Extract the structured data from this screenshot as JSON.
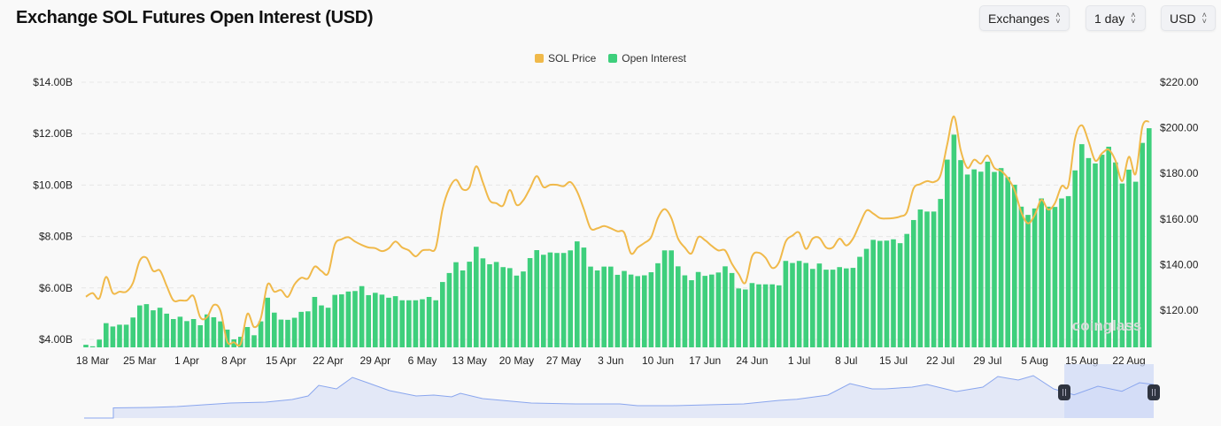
{
  "header": {
    "title": "Exchange SOL Futures Open Interest (USD)",
    "selects": [
      {
        "label": "Exchanges",
        "icon": "chevron-updown-icon"
      },
      {
        "label": "1 day",
        "icon": "chevron-updown-icon"
      },
      {
        "label": "USD",
        "icon": "chevron-updown-icon"
      }
    ]
  },
  "watermark": "coinglass",
  "colors": {
    "price": "#f0b94a",
    "open_interest": "#3ecf7c",
    "navigator_line": "#8aa6ee",
    "navigator_fill": "#e3e8f7",
    "navigator_selection": "#cdd8f7"
  },
  "chart_data": {
    "type": "bar+line",
    "legend_position": "top-center",
    "grid": true,
    "x_tick_labels": [
      "18 Mar",
      "25 Mar",
      "1 Apr",
      "8 Apr",
      "15 Apr",
      "22 Apr",
      "29 Apr",
      "6 May",
      "13 May",
      "20 May",
      "27 May",
      "3 Jun",
      "10 Jun",
      "17 Jun",
      "24 Jun",
      "1 Jul",
      "8 Jul",
      "15 Jul",
      "22 Jul",
      "29 Jul",
      "5 Aug",
      "15 Aug",
      "22 Aug"
    ],
    "left_axis": {
      "ticks": [
        "$4.00B",
        "$6.00B",
        "$8.00B",
        "$10.00B",
        "$12.00B",
        "$14.00B"
      ],
      "tick_values": [
        4,
        6,
        8,
        10,
        12,
        14
      ],
      "ylim": [
        3.69,
        14
      ],
      "unit": "USD billions"
    },
    "right_axis": {
      "ticks": [
        "$120.00",
        "$140.00",
        "$160.00",
        "$180.00",
        "$200.00",
        "$220.00"
      ],
      "tick_values": [
        120,
        140,
        160,
        180,
        200,
        220
      ],
      "ylim": [
        103.7,
        220
      ]
    },
    "series": [
      {
        "name": "Open Interest",
        "type": "bar",
        "axis": "left",
        "values": [
          3.79,
          3.73,
          3.99,
          4.63,
          4.5,
          4.57,
          4.57,
          4.85,
          5.32,
          5.37,
          5.13,
          5.23,
          5.0,
          4.79,
          4.88,
          4.71,
          4.79,
          4.55,
          4.97,
          4.86,
          4.7,
          4.38,
          4.0,
          4.1,
          4.48,
          4.16,
          4.7,
          5.62,
          5.04,
          4.77,
          4.76,
          4.84,
          5.07,
          5.09,
          5.65,
          5.32,
          5.23,
          5.73,
          5.75,
          5.86,
          5.88,
          6.07,
          5.72,
          5.81,
          5.74,
          5.62,
          5.68,
          5.52,
          5.52,
          5.52,
          5.56,
          5.65,
          5.52,
          6.23,
          6.58,
          7.0,
          6.68,
          7.02,
          7.6,
          7.15,
          6.92,
          7.01,
          6.81,
          6.77,
          6.48,
          6.64,
          7.16,
          7.47,
          7.29,
          7.38,
          7.36,
          7.36,
          7.46,
          7.81,
          7.57,
          6.83,
          6.68,
          6.83,
          6.83,
          6.51,
          6.66,
          6.52,
          6.46,
          6.49,
          6.61,
          6.96,
          7.46,
          7.46,
          6.84,
          6.49,
          6.3,
          6.62,
          6.47,
          6.52,
          6.6,
          6.84,
          6.58,
          5.98,
          5.94,
          6.19,
          6.14,
          6.14,
          6.14,
          6.1,
          7.05,
          6.97,
          7.05,
          6.97,
          6.74,
          6.95,
          6.71,
          6.71,
          6.81,
          6.76,
          6.78,
          7.21,
          7.52,
          7.87,
          7.83,
          7.84,
          7.89,
          7.74,
          8.1,
          8.64,
          9.05,
          8.97,
          8.97,
          9.46,
          10.99,
          11.96,
          10.97,
          10.41,
          10.61,
          10.52,
          10.91,
          10.51,
          10.66,
          10.31,
          10.01,
          9.16,
          8.84,
          9.09,
          9.48,
          9.16,
          9.15,
          9.48,
          9.57,
          10.57,
          11.59,
          11.05,
          10.84,
          11.18,
          11.49,
          10.88,
          10.06,
          10.6,
          10.13,
          11.64,
          12.21
        ]
      },
      {
        "name": "SOL Price",
        "type": "line",
        "axis": "right",
        "values": [
          125.9,
          127.5,
          125.2,
          134.6,
          127.5,
          128.1,
          128.1,
          132.0,
          141.7,
          143.0,
          137.2,
          137.4,
          130.7,
          124.3,
          124.3,
          124.3,
          126.2,
          116.9,
          116.9,
          122.3,
          119.7,
          106.2,
          105.9,
          105.2,
          118.4,
          112.6,
          116.5,
          131.3,
          128.1,
          128.8,
          125.8,
          131.3,
          134.2,
          133.9,
          139.1,
          137.2,
          136.2,
          148.8,
          151.1,
          152.0,
          150.1,
          148.6,
          147.5,
          147.2,
          145.9,
          147.1,
          150.1,
          147.5,
          146.2,
          143.6,
          146.2,
          146.5,
          147.5,
          164.3,
          173.4,
          177.2,
          173.0,
          174.0,
          183.1,
          176.0,
          168.2,
          166.9,
          165.9,
          172.7,
          166.2,
          168.2,
          173.4,
          178.8,
          174.0,
          175.0,
          175.0,
          174.4,
          176.2,
          172.0,
          164.3,
          155.9,
          155.9,
          156.9,
          155.9,
          154.6,
          154.0,
          144.9,
          147.5,
          149.5,
          152.0,
          160.4,
          164.3,
          160.4,
          151.4,
          147.5,
          144.9,
          152.0,
          150.7,
          148.2,
          146.2,
          146.2,
          140.4,
          135.9,
          132.0,
          143.6,
          145.2,
          143.0,
          138.5,
          141.0,
          150.1,
          152.7,
          154.0,
          146.9,
          151.4,
          151.7,
          147.5,
          147.5,
          151.4,
          148.4,
          151.4,
          157.8,
          163.7,
          162.4,
          160.4,
          160.2,
          160.4,
          161.1,
          163.0,
          173.4,
          175.3,
          176.6,
          176.2,
          179.2,
          192.7,
          205.0,
          190.2,
          182.4,
          186.0,
          184.3,
          187.8,
          182.4,
          181.1,
          177.9,
          172.7,
          163.0,
          158.1,
          161.7,
          168.4,
          164.1,
          166.9,
          174.4,
          174.7,
          195.3,
          201.1,
          194.0,
          185.6,
          188.8,
          190.4,
          185.6,
          176.6,
          187.3,
          179.8,
          200.5,
          202.8
        ]
      }
    ]
  }
}
